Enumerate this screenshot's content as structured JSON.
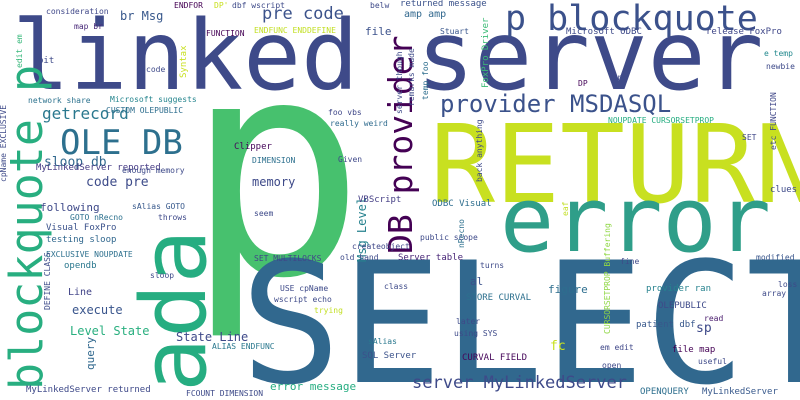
{
  "words": [
    {
      "text": "p",
      "color": "#47c16e"
    },
    {
      "text": "SELECT",
      "color": "#31688e"
    },
    {
      "text": "linked server",
      "color": "#3e4a89"
    },
    {
      "text": "RETURN",
      "color": "#c8e020"
    },
    {
      "text": "error",
      "color": "#2f9e89"
    },
    {
      "text": "ada",
      "color": "#26ad81"
    },
    {
      "text": "blockquote p",
      "color": "#28ae80"
    },
    {
      "text": "p blockquote",
      "color": "#3b518b"
    },
    {
      "text": "DB provider",
      "color": "#440154"
    },
    {
      "text": "OLE DB",
      "color": "#2d708e"
    },
    {
      "text": "provider MSDASQL",
      "color": "#3b528b"
    },
    {
      "text": "server MyLinkedServer",
      "color": "#3e4a89"
    },
    {
      "text": "pre code",
      "color": "#3b528b"
    },
    {
      "text": "getrecord",
      "color": "#2a788e"
    },
    {
      "text": "sloop db",
      "color": "#31688e"
    },
    {
      "text": "code pre",
      "color": "#3e4c8a"
    },
    {
      "text": "memory",
      "color": "#3e4a89"
    },
    {
      "text": "Level State",
      "color": "#29af7f"
    },
    {
      "text": "State Line",
      "color": "#3e4989"
    },
    {
      "text": "br Msg",
      "color": "#38588c"
    },
    {
      "text": "Msg Level",
      "color": "#26828e"
    },
    {
      "text": "following",
      "color": "#3e4989"
    },
    {
      "text": "figure",
      "color": "#2e6e8e"
    },
    {
      "text": "sp",
      "color": "#3e4a89"
    },
    {
      "text": "fc",
      "color": "#c8e020"
    },
    {
      "text": "execute",
      "color": "#39558c"
    },
    {
      "text": "query",
      "color": "#31688e"
    },
    {
      "text": "error message",
      "color": "#26ad81"
    },
    {
      "text": "testing sloop",
      "color": "#31688e"
    },
    {
      "text": "Visual FoxPro",
      "color": "#3b528b"
    },
    {
      "text": "opendb",
      "color": "#2a788e"
    },
    {
      "text": "al",
      "color": "#3b518b"
    },
    {
      "text": "file",
      "color": "#3b518b"
    },
    {
      "text": "amp amp",
      "color": "#31688e"
    },
    {
      "text": "Line",
      "color": "#404387"
    },
    {
      "text": "MyLinkedServer reported",
      "color": "#443983"
    },
    {
      "text": "MyLinkedServer returned",
      "color": "#3e4989"
    },
    {
      "text": "MyLinkedServer",
      "color": "#38598c"
    },
    {
      "text": "SQL Server",
      "color": "#3b528b"
    },
    {
      "text": "file map",
      "color": "#440154"
    },
    {
      "text": "returned message",
      "color": "#3b528b"
    },
    {
      "text": "Microsoft ODBC",
      "color": "#3e4a89"
    },
    {
      "text": "release FoxPro",
      "color": "#3f4788"
    },
    {
      "text": "FoxPro Driver",
      "color": "#3bbb75"
    },
    {
      "text": "ODBC Visual",
      "color": "#2e6e8e"
    },
    {
      "text": "VBScript",
      "color": "#433d84"
    },
    {
      "text": "Server table",
      "color": "#482677"
    },
    {
      "text": "STORE CURVAL",
      "color": "#2d708e"
    },
    {
      "text": "CURVAL FIELD",
      "color": "#46075a"
    },
    {
      "text": "OPENQUERY",
      "color": "#2e6f8e"
    },
    {
      "text": "OLEPUBLIC",
      "color": "#3e4a89"
    },
    {
      "text": "provider ran",
      "color": "#26828e"
    },
    {
      "text": "patient dbf",
      "color": "#38588c"
    },
    {
      "text": "NOUPDATE CURSORSETPROP",
      "color": "#26ad81"
    },
    {
      "text": "CURSORSETPROP Buffering",
      "color": "#8fd744"
    },
    {
      "text": "DIMENSION",
      "color": "#2d708e"
    },
    {
      "text": "Clipper",
      "color": "#46075a"
    },
    {
      "text": "Given",
      "color": "#3f4889"
    },
    {
      "text": "enough memory",
      "color": "#3e4a89"
    },
    {
      "text": "sAlias GOTO",
      "color": "#38598c"
    },
    {
      "text": "GOTO nRecno",
      "color": "#2c718e"
    },
    {
      "text": "EXCLUSIVE NOUPDATE",
      "color": "#2d708e"
    },
    {
      "text": "DEFINE CLASS",
      "color": "#3e4c8a"
    },
    {
      "text": "CUSTOM OLEPUBLIC",
      "color": "#2e6e8e"
    },
    {
      "text": "network share",
      "color": "#2c728e"
    },
    {
      "text": "Microsoft suggests",
      "color": "#25858e"
    },
    {
      "text": "consideration",
      "color": "#3f4788"
    },
    {
      "text": "ENDFOR",
      "color": "#440154"
    },
    {
      "text": "dbf wscript",
      "color": "#3e4a89"
    },
    {
      "text": "FUNCTION",
      "color": "#440154"
    },
    {
      "text": "ENDFUNC ENDDEFINE",
      "color": "#c2df23"
    },
    {
      "text": "Syntax",
      "color": "#c8e020"
    },
    {
      "text": "DP'",
      "color": "#c8e020"
    },
    {
      "text": "map br",
      "color": "#482878"
    },
    {
      "text": "edit em",
      "color": "#35b779"
    },
    {
      "text": "bit",
      "color": "#3e4a89"
    },
    {
      "text": "cpName EXCLUSIVE",
      "color": "#3e4a89"
    },
    {
      "text": "code",
      "color": "#3e4989"
    },
    {
      "text": "foo vbs",
      "color": "#3f4788"
    },
    {
      "text": "really weird",
      "color": "#2f6b8e"
    },
    {
      "text": "server though",
      "color": "#3e4a89"
    },
    {
      "text": "remarks made",
      "color": "#3e4a89"
    },
    {
      "text": "temp foo",
      "color": "#2e6e8e"
    },
    {
      "text": "Stuart",
      "color": "#39568c"
    },
    {
      "text": "belw",
      "color": "#3e4a89"
    },
    {
      "text": "prg",
      "color": "#3e4a89"
    },
    {
      "text": "DP",
      "color": "#46075a"
    },
    {
      "text": "e temp",
      "color": "#23898e"
    },
    {
      "text": "newbie",
      "color": "#3e4a89"
    },
    {
      "text": "etc FUNCTION",
      "color": "#3f4788"
    },
    {
      "text": "SET",
      "color": "#3f4788"
    },
    {
      "text": "clues",
      "color": "#3e4a89"
    },
    {
      "text": "modified",
      "color": "#39568c"
    },
    {
      "text": "fine",
      "color": "#3e4989"
    },
    {
      "text": "loss",
      "color": "#3e4a89"
    },
    {
      "text": "array",
      "color": "#3e4a89"
    },
    {
      "text": "read",
      "color": "#481a6c"
    },
    {
      "text": "useful",
      "color": "#3e4a89"
    },
    {
      "text": "open",
      "color": "#3e4989"
    },
    {
      "text": "em edit",
      "color": "#3f4788"
    },
    {
      "text": "later",
      "color": "#3e4a89"
    },
    {
      "text": "using SYS",
      "color": "#3e4a89"
    },
    {
      "text": "turns",
      "color": "#3e4a89"
    },
    {
      "text": "back anything",
      "color": "#3e4a89"
    },
    {
      "text": "nRecno",
      "color": "#2d708e"
    },
    {
      "text": "public scope",
      "color": "#3e4a89"
    },
    {
      "text": "createobject",
      "color": "#3f4788"
    },
    {
      "text": "old hand",
      "color": "#3e4a89"
    },
    {
      "text": "SET MULTILOCKS",
      "color": "#404588"
    },
    {
      "text": "class",
      "color": "#3e4a89"
    },
    {
      "text": "USE cpName",
      "color": "#3e4a89"
    },
    {
      "text": "wscript echo",
      "color": "#3e4a89"
    },
    {
      "text": "trying",
      "color": "#c2df23"
    },
    {
      "text": "sAlias",
      "color": "#2a788e"
    },
    {
      "text": "ALIAS ENDFUNC",
      "color": "#2a788e"
    },
    {
      "text": "FCOUNT DIMENSION",
      "color": "#3e4a89"
    },
    {
      "text": "throws",
      "color": "#3e4989"
    },
    {
      "text": "sloop",
      "color": "#3e4a89"
    },
    {
      "text": "seem",
      "color": "#3e4a89"
    },
    {
      "text": "eaf",
      "color": "#c2df23"
    }
  ]
}
